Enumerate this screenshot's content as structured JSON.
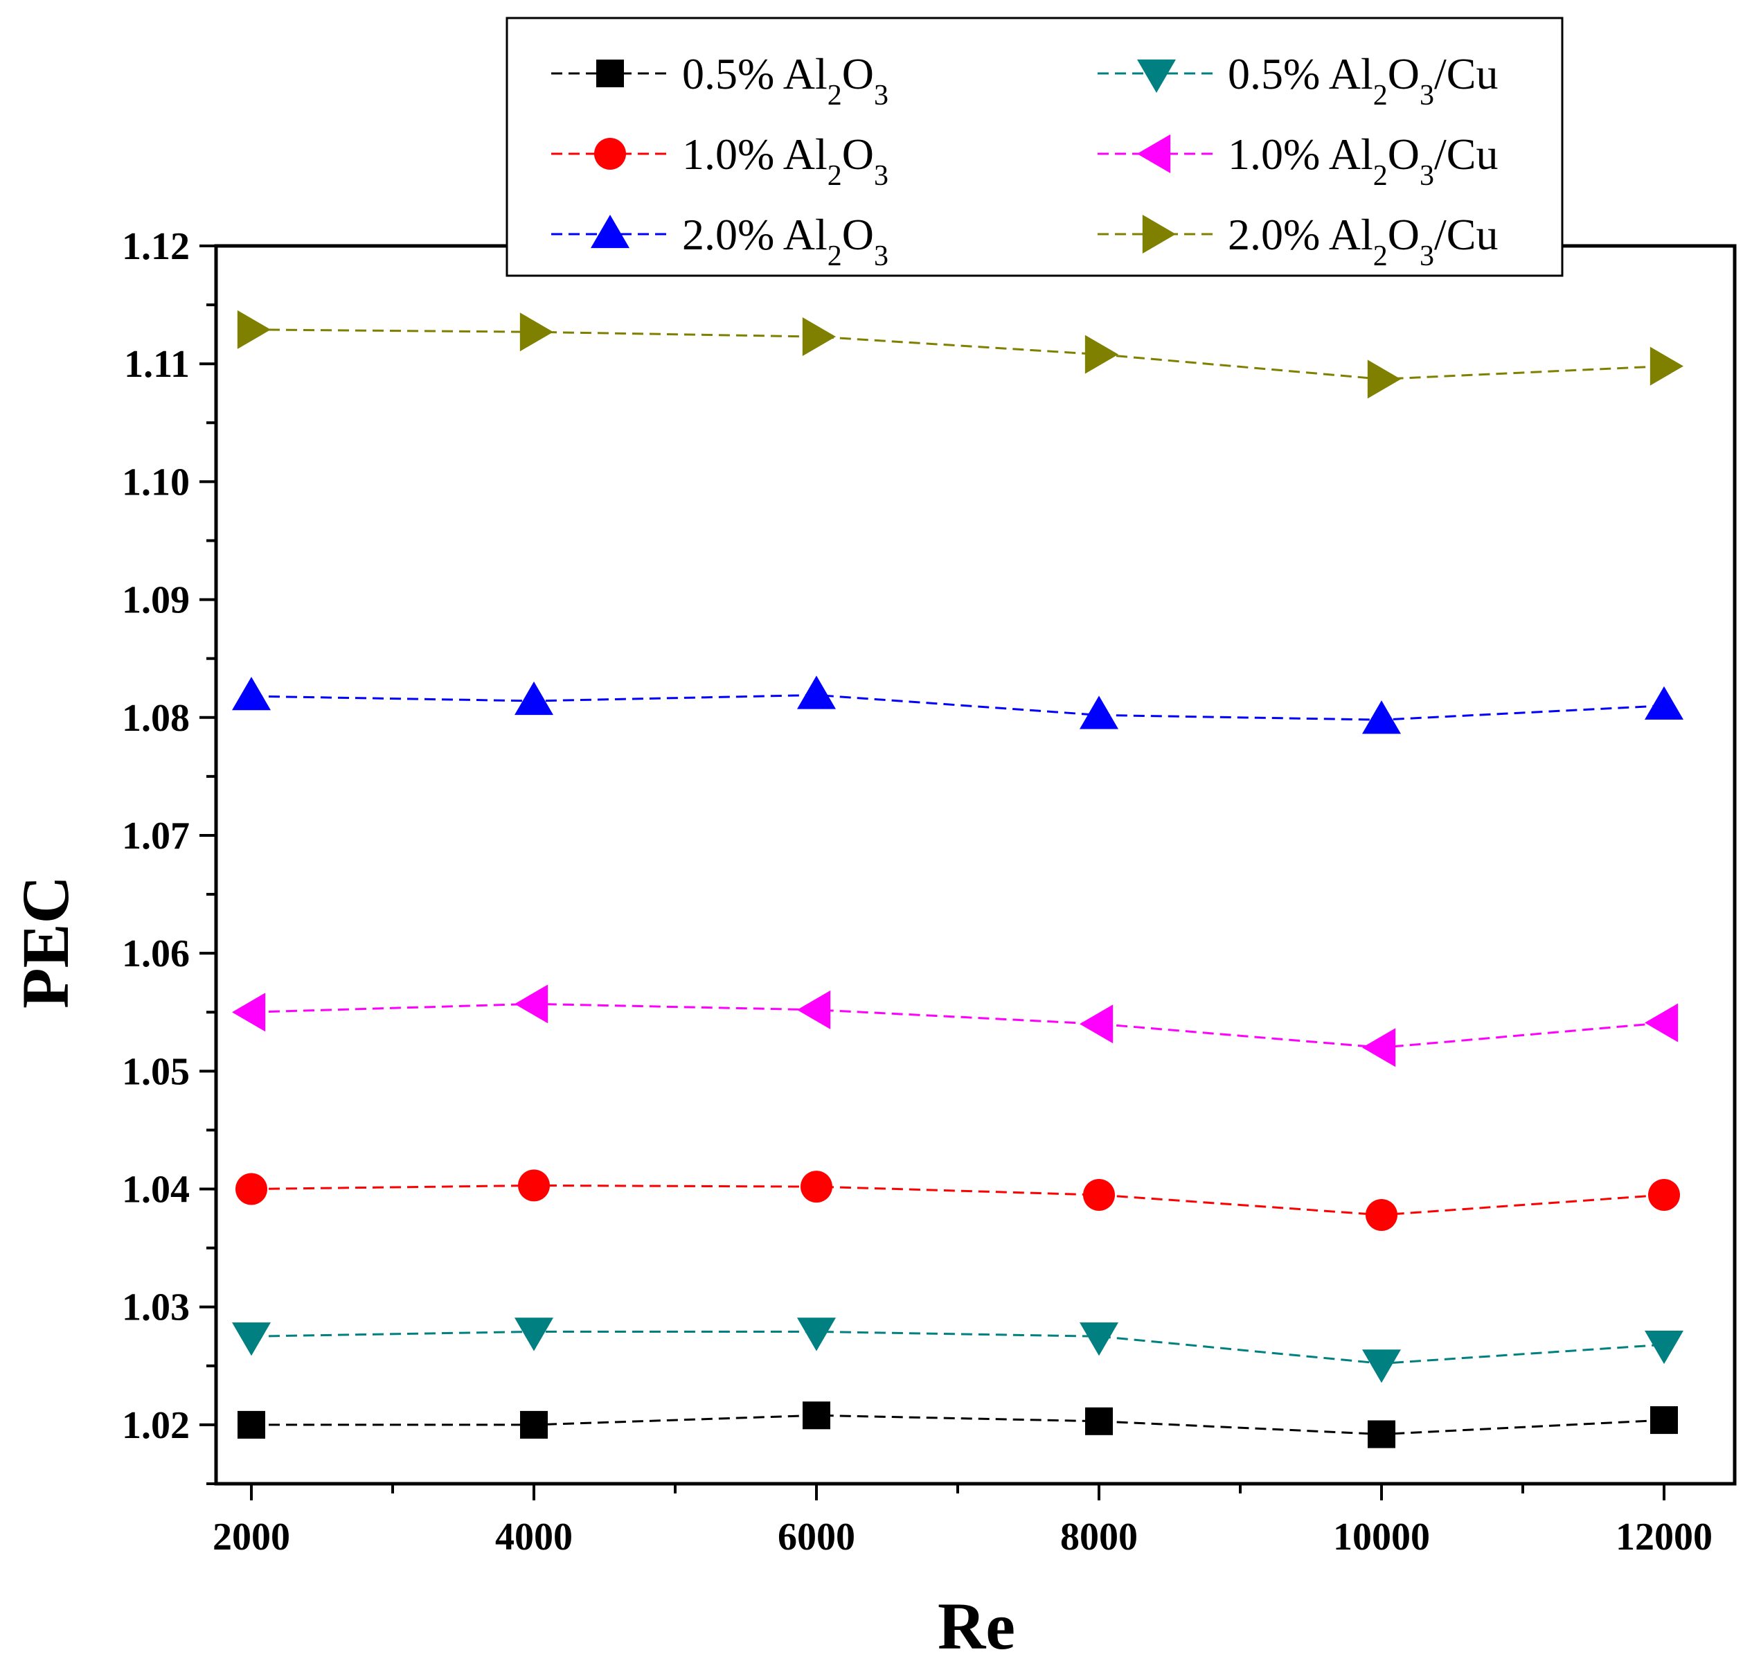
{
  "chart_data": {
    "type": "line",
    "title": "",
    "xlabel": "Re",
    "ylabel": "PEC",
    "xlim": [
      1750,
      12500
    ],
    "ylim": [
      1.015,
      1.12
    ],
    "xticks": [
      2000,
      4000,
      6000,
      8000,
      10000,
      12000
    ],
    "xtick_labels": [
      "2000",
      "4000",
      "6000",
      "8000",
      "10000",
      "12000"
    ],
    "yticks": [
      1.02,
      1.03,
      1.04,
      1.05,
      1.06,
      1.07,
      1.08,
      1.09,
      1.1,
      1.11,
      1.12
    ],
    "ytick_labels": [
      "1.02",
      "1.03",
      "1.04",
      "1.05",
      "1.06",
      "1.07",
      "1.08",
      "1.09",
      "1.10",
      "1.11",
      "1.12"
    ],
    "grid": false,
    "legend_position": "top-center",
    "x": [
      2000,
      4000,
      6000,
      8000,
      10000,
      12000
    ],
    "series": [
      {
        "name": "0.5% Al2O3",
        "pct": "0.5%",
        "suffix": "",
        "color": "#000000",
        "marker": "square",
        "values": [
          1.02,
          1.02,
          1.0208,
          1.0203,
          1.0192,
          1.0204
        ]
      },
      {
        "name": "1.0% Al2O3",
        "pct": "1.0%",
        "suffix": "",
        "color": "#ff0000",
        "marker": "circle",
        "values": [
          1.04,
          1.0403,
          1.0402,
          1.0395,
          1.0378,
          1.0395
        ]
      },
      {
        "name": "2.0% Al2O3",
        "pct": "2.0%",
        "suffix": "",
        "color": "#0000ff",
        "marker": "triangle-up",
        "values": [
          1.0818,
          1.0814,
          1.0819,
          1.0802,
          1.0798,
          1.081
        ]
      },
      {
        "name": "0.5% Al2O3/Cu",
        "pct": "0.5%",
        "suffix": "/Cu",
        "color": "#008080",
        "marker": "triangle-down",
        "values": [
          1.0275,
          1.0279,
          1.0279,
          1.0275,
          1.0252,
          1.0268
        ]
      },
      {
        "name": "1.0% Al2O3/Cu",
        "pct": "1.0%",
        "suffix": "/Cu",
        "color": "#ff00ff",
        "marker": "triangle-left",
        "values": [
          1.055,
          1.0557,
          1.0552,
          1.054,
          1.052,
          1.0541
        ]
      },
      {
        "name": "2.0% Al2O3/Cu",
        "pct": "2.0%",
        "suffix": "/Cu",
        "color": "#808000",
        "marker": "triangle-right",
        "values": [
          1.1129,
          1.1127,
          1.1123,
          1.1108,
          1.1087,
          1.1098
        ]
      }
    ]
  }
}
